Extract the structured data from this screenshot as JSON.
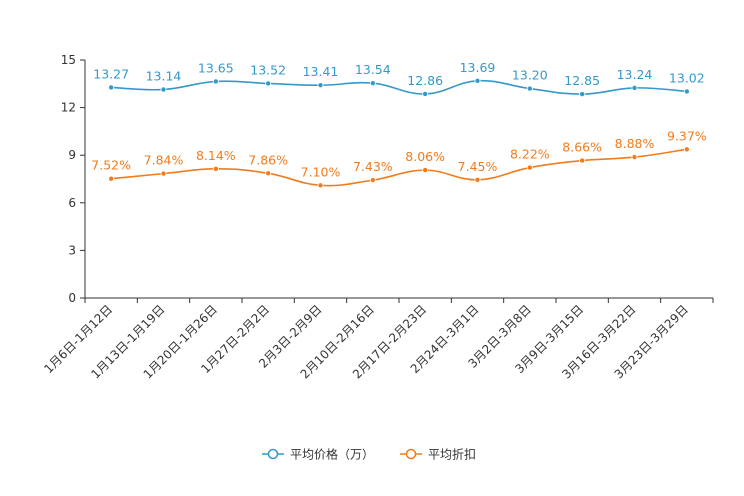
{
  "chart_data": {
    "type": "line",
    "categories": [
      "1月6日-1月12日",
      "1月13日-1月19日",
      "1月20日-1月26日",
      "1月27日-2月2日",
      "2月3日-2月9日",
      "2月10日-2月16日",
      "2月17日-2月23日",
      "2月24日-3月1日",
      "3月2日-3月8日",
      "3月9日-3月15日",
      "3月16日-3月22日",
      "3月23日-3月29日"
    ],
    "series": [
      {
        "name": "平均价格（万）",
        "color": "#3399cc",
        "values": [
          13.27,
          13.14,
          13.65,
          13.52,
          13.41,
          13.54,
          12.86,
          13.69,
          13.2,
          12.85,
          13.24,
          13.02
        ],
        "labels": [
          "13.27",
          "13.14",
          "13.65",
          "13.52",
          "13.41",
          "13.54",
          "12.86",
          "13.69",
          "13.20",
          "12.85",
          "13.24",
          "13.02"
        ]
      },
      {
        "name": "平均折扣",
        "color": "#f27b1b",
        "values": [
          7.52,
          7.84,
          8.14,
          7.86,
          7.1,
          7.43,
          8.06,
          7.45,
          8.22,
          8.66,
          8.88,
          9.37
        ],
        "labels": [
          "7.52%",
          "7.84%",
          "8.14%",
          "7.86%",
          "7.10%",
          "7.43%",
          "8.06%",
          "7.45%",
          "8.22%",
          "8.66%",
          "8.88%",
          "9.37%"
        ]
      }
    ],
    "y_ticks": [
      "0",
      "3",
      "6",
      "9",
      "12",
      "15"
    ],
    "ylim": [
      0,
      15
    ],
    "legend_position": "bottom-center"
  }
}
